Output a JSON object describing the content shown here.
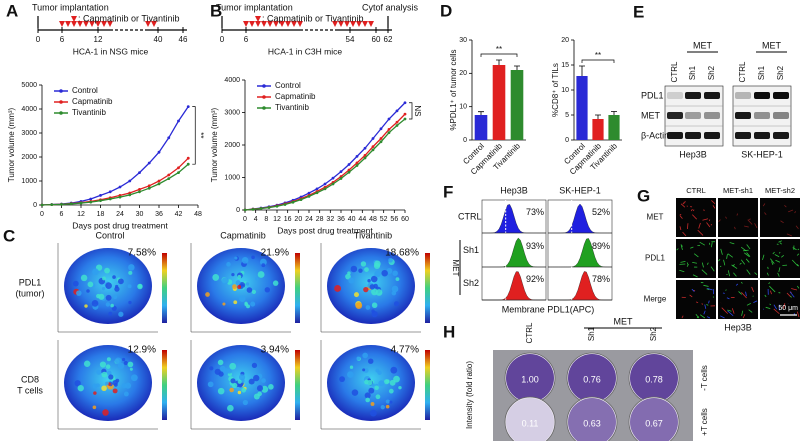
{
  "chart_data": [
    {
      "type": "line",
      "label": "A",
      "xlabel": "Days post drug treatment",
      "ylabel": "Tumor volume (mm³)",
      "x": [
        0,
        3,
        6,
        9,
        12,
        15,
        18,
        21,
        24,
        27,
        30,
        33,
        36,
        39,
        42,
        45
      ],
      "xlim": [
        0,
        48
      ],
      "xticks": [
        0,
        6,
        12,
        18,
        24,
        30,
        36,
        42,
        48
      ],
      "ylim": [
        0,
        5000
      ],
      "yticks": [
        0,
        1000,
        2000,
        3000,
        4000,
        5000
      ],
      "series": [
        {
          "name": "Control",
          "color": "#2a2ad6",
          "values": [
            0,
            20,
            40,
            80,
            150,
            250,
            400,
            550,
            750,
            1000,
            1350,
            1750,
            2200,
            2800,
            3500,
            4100
          ]
        },
        {
          "name": "Capmatinib",
          "color": "#e02020",
          "values": [
            0,
            15,
            30,
            60,
            100,
            150,
            220,
            300,
            400,
            500,
            650,
            800,
            1000,
            1250,
            1550,
            1950
          ]
        },
        {
          "name": "Tivantinib",
          "color": "#2e8b2e",
          "values": [
            0,
            15,
            25,
            50,
            80,
            120,
            180,
            250,
            330,
            420,
            550,
            700,
            880,
            1100,
            1350,
            1700
          ]
        }
      ],
      "legend": "upper left",
      "annotation": "**",
      "timeline": {
        "start": "Tumor implantation",
        "treatment": ": Capmatinib or Tivantinib",
        "model": "HCA-1 in NSG mice",
        "ticks": [
          0,
          6,
          12,
          40,
          46
        ]
      }
    },
    {
      "type": "line",
      "label": "B",
      "xlabel": "Days post drug treatment",
      "ylabel": "Tumor volume (mm³)",
      "x": [
        0,
        3,
        6,
        9,
        12,
        15,
        18,
        21,
        24,
        27,
        30,
        33,
        36,
        39,
        42,
        45,
        48,
        51,
        54,
        57,
        60
      ],
      "xlim": [
        0,
        60
      ],
      "xticks": [
        0,
        4,
        8,
        12,
        16,
        20,
        24,
        28,
        32,
        36,
        40,
        44,
        48,
        52,
        56,
        60
      ],
      "ylim": [
        0,
        4000
      ],
      "yticks": [
        0,
        1000,
        2000,
        3000,
        4000
      ],
      "series": [
        {
          "name": "Control",
          "color": "#2a2ad6",
          "values": [
            0,
            30,
            60,
            100,
            150,
            220,
            300,
            400,
            520,
            650,
            800,
            980,
            1180,
            1400,
            1650,
            1900,
            2200,
            2500,
            2800,
            3050,
            3300
          ]
        },
        {
          "name": "Capmatinib",
          "color": "#e02020",
          "values": [
            0,
            25,
            50,
            85,
            130,
            190,
            260,
            350,
            450,
            570,
            700,
            850,
            1030,
            1230,
            1450,
            1680,
            1950,
            2200,
            2480,
            2700,
            2950
          ]
        },
        {
          "name": "Tivantinib",
          "color": "#2e8b2e",
          "values": [
            0,
            20,
            45,
            75,
            115,
            170,
            240,
            320,
            420,
            530,
            650,
            800,
            970,
            1160,
            1370,
            1600,
            1850,
            2100,
            2380,
            2600,
            2800
          ]
        }
      ],
      "legend": "upper left",
      "annotation": "NS",
      "timeline": {
        "start": "Tumor implantation",
        "treatment": ": Capmatinib or Tivantinib",
        "model": "HCA-1 in C3H mice",
        "end": "Cytof analysis",
        "ticks": [
          0,
          6,
          54,
          60,
          62
        ]
      }
    },
    {
      "type": "bar",
      "label": "D",
      "ylabel": "%PDL1⁺ of tumor cells",
      "categories": [
        "Control",
        "Capmatinib",
        "Tivantinib"
      ],
      "values": [
        7.5,
        22.5,
        21
      ],
      "errors": [
        1,
        1.5,
        1.2
      ],
      "colors": [
        "#2a2ad6",
        "#e02020",
        "#2e8b2e"
      ],
      "ylim": [
        0,
        30
      ],
      "yticks": [
        0,
        10,
        20,
        30
      ],
      "annotation": "**"
    },
    {
      "type": "bar",
      "ylabel": "%CD8⁺ of TILs",
      "categories": [
        "Control",
        "Capmatinib",
        "Tivantinib"
      ],
      "values": [
        12.8,
        4.2,
        5
      ],
      "errors": [
        2,
        0.8,
        0.7
      ],
      "colors": [
        "#2a2ad6",
        "#e02020",
        "#2e8b2e"
      ],
      "ylim": [
        0,
        20
      ],
      "yticks": [
        0,
        5,
        10,
        15,
        20
      ],
      "annotation": "**"
    }
  ],
  "panels": {
    "C": {
      "label": "C",
      "columns": [
        "Control",
        "Capmatinib",
        "Tivantinib"
      ],
      "rows": [
        [
          "PDL1",
          "(tumor)"
        ],
        [
          "CD8",
          "T cells"
        ]
      ],
      "percents": [
        [
          "7.58%",
          "21.9%",
          "18.68%"
        ],
        [
          "12.9%",
          "3.94%",
          "4.77%"
        ]
      ]
    },
    "E": {
      "label": "E",
      "ctrl": "CTRL",
      "group": "MET",
      "lanes": [
        "Sh1",
        "Sh2"
      ],
      "rows": [
        "PDL1",
        "MET",
        "β-Actin"
      ],
      "cells": [
        "Hep3B",
        "SK-HEP-1"
      ]
    },
    "F": {
      "label": "F",
      "cells": [
        "Hep3B",
        "SK-HEP-1"
      ],
      "ctrl": "CTRL",
      "group": "MET",
      "lanes": [
        "Sh1",
        "Sh2"
      ],
      "percents": [
        [
          "73%",
          "93%",
          "92%"
        ],
        [
          "52%",
          "89%",
          "78%"
        ]
      ],
      "xlabel": "Membrane PDL1(APC)"
    },
    "G": {
      "label": "G",
      "columns": [
        "CTRL",
        "MET-sh1",
        "MET-sh2"
      ],
      "rows": [
        "MET",
        "PDL1",
        "Merge"
      ],
      "cell": "Hep3B",
      "scale": "50 μm"
    },
    "H": {
      "label": "H",
      "ctrl": "CTRL",
      "group": "MET",
      "lanes": [
        "Sh1",
        "Sh2"
      ],
      "ylabel": "Intensity (fold ratio)",
      "rows": [
        "-T cells",
        "+T cells"
      ],
      "values": [
        [
          "1.00",
          "0.76",
          "0.78"
        ],
        [
          "0.11",
          "0.63",
          "0.67"
        ]
      ]
    }
  }
}
